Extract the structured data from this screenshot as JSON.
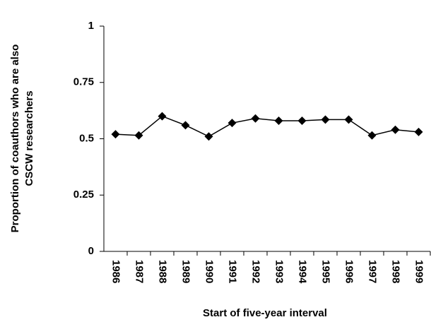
{
  "chart_data": {
    "type": "line",
    "xlabel": "Start of five-year interval",
    "ylabel": [
      "Proportion of coauthors who are also",
      "CSCW researchers"
    ],
    "categories": [
      "1986",
      "1987",
      "1988",
      "1989",
      "1990",
      "1991",
      "1992",
      "1993",
      "1994",
      "1995",
      "1996",
      "1997",
      "1998",
      "1999"
    ],
    "series": [
      {
        "color": "#000000",
        "marker": "diamond",
        "values": [
          0.52,
          0.515,
          0.6,
          0.56,
          0.51,
          0.57,
          0.59,
          0.58,
          0.58,
          0.585,
          0.585,
          0.515,
          0.54,
          0.53
        ]
      }
    ],
    "ylim": [
      0,
      1
    ],
    "yticks": [
      0,
      0.25,
      0.5,
      0.75,
      1
    ],
    "grid": false
  }
}
